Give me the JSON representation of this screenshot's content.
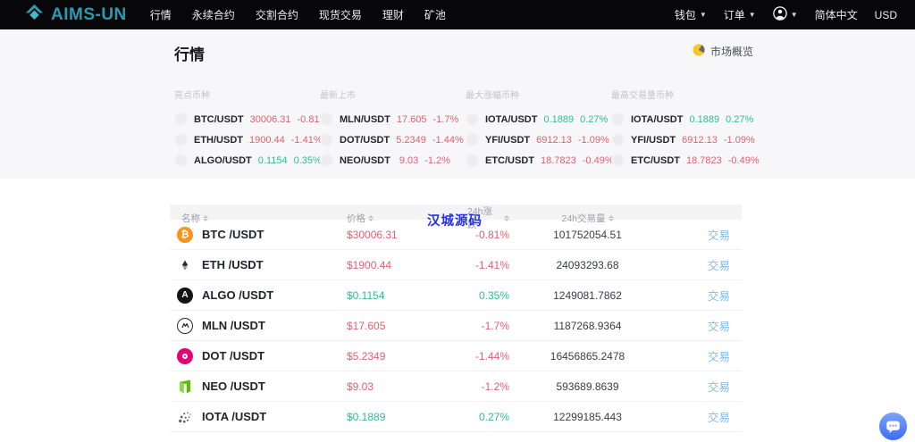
{
  "navbar": {
    "brand": "AIMS-UN",
    "menu": [
      "行情",
      "永续合约",
      "交割合约",
      "现货交易",
      "理财",
      "矿池"
    ],
    "right": {
      "wallet": "钱包",
      "orders": "订单",
      "language": "简体中文",
      "currency": "USD"
    }
  },
  "hero": {
    "title": "行情",
    "market_overview": "市场概览"
  },
  "overview_columns": [
    {
      "title": "亮点币种",
      "rows": [
        {
          "pair": "BTC/USDT",
          "price": "30006.31",
          "change": "-0.81%",
          "trend": "down"
        },
        {
          "pair": "ETH/USDT",
          "price": "1900.44",
          "change": "-1.41%",
          "trend": "down"
        },
        {
          "pair": "ALGO/USDT",
          "price": "0.1154",
          "change": "0.35%",
          "trend": "up"
        }
      ]
    },
    {
      "title": "最新上市",
      "rows": [
        {
          "pair": "MLN/USDT",
          "price": "17.605",
          "change": "-1.7%",
          "trend": "down"
        },
        {
          "pair": "DOT/USDT",
          "price": "5.2349",
          "change": "-1.44%",
          "trend": "down"
        },
        {
          "pair": "NEO/USDT",
          "price": "9.03",
          "change": "-1.2%",
          "trend": "down"
        }
      ]
    },
    {
      "title": "最大涨幅币种",
      "rows": [
        {
          "pair": "IOTA/USDT",
          "price": "0.1889",
          "change": "0.27%",
          "trend": "up"
        },
        {
          "pair": "YFI/USDT",
          "price": "6912.13",
          "change": "-1.09%",
          "trend": "down"
        },
        {
          "pair": "ETC/USDT",
          "price": "18.7823",
          "change": "-0.49%",
          "trend": "down"
        }
      ]
    },
    {
      "title": "最高交易量币种",
      "rows": [
        {
          "pair": "IOTA/USDT",
          "price": "0.1889",
          "change": "0.27%",
          "trend": "up"
        },
        {
          "pair": "YFI/USDT",
          "price": "6912.13",
          "change": "-1.09%",
          "trend": "down"
        },
        {
          "pair": "ETC/USDT",
          "price": "18.7823",
          "change": "-0.49%",
          "trend": "down"
        }
      ]
    }
  ],
  "table": {
    "headers": [
      "名称",
      "价格",
      "24h涨跌",
      "24h交易量"
    ],
    "trade_label": "交易",
    "rows": [
      {
        "coin": "BTC",
        "pair": "BTC /USDT",
        "price": "$30006.31",
        "change": "-0.81%",
        "volume": "101752054.51",
        "trend": "down"
      },
      {
        "coin": "ETH",
        "pair": "ETH /USDT",
        "price": "$1900.44",
        "change": "-1.41%",
        "volume": "24093293.68",
        "trend": "down"
      },
      {
        "coin": "ALGO",
        "pair": "ALGO /USDT",
        "price": "$0.1154",
        "change": "0.35%",
        "volume": "1249081.7862",
        "trend": "up"
      },
      {
        "coin": "MLN",
        "pair": "MLN /USDT",
        "price": "$17.605",
        "change": "-1.7%",
        "volume": "1187268.9364",
        "trend": "down"
      },
      {
        "coin": "DOT",
        "pair": "DOT /USDT",
        "price": "$5.2349",
        "change": "-1.44%",
        "volume": "16456865.2478",
        "trend": "down"
      },
      {
        "coin": "NEO",
        "pair": "NEO /USDT",
        "price": "$9.03",
        "change": "-1.2%",
        "volume": "593689.8639",
        "trend": "down"
      },
      {
        "coin": "IOTA",
        "pair": "IOTA /USDT",
        "price": "$0.1889",
        "change": "0.27%",
        "volume": "12299185.443",
        "trend": "up"
      }
    ]
  },
  "watermark": "汉城源码",
  "colors": {
    "up": "#2ebd8f",
    "down": "#e06070",
    "brand": "#2b9cb0",
    "trade_link": "#87bade",
    "watermark": "#2531e3",
    "navbar_bg": "#070709",
    "hero_bg": "#f7f7f9"
  }
}
